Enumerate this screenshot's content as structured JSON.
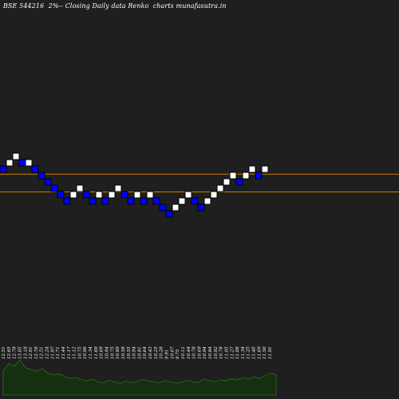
{
  "chart_data": {
    "type": "renko",
    "title": "BSE 544216  2%-- Closing Daily data Renko  charts munafasutra.in",
    "colors": {
      "background": "#1f1f1f",
      "up_brick": "#ffffff",
      "down_brick": "#0000ff",
      "brick_border": "#000000",
      "level_line": "#cc7a00",
      "volume_fill": "#14300f",
      "volume_line": "#2e6b22"
    },
    "ylim": [
      9.5,
      14.0
    ],
    "bricks": [
      {
        "dir": "down",
        "level": 13.51
      },
      {
        "dir": "up",
        "level": 13.78
      },
      {
        "dir": "up",
        "level": 14.05
      },
      {
        "dir": "down",
        "level": 13.78
      },
      {
        "dir": "up",
        "level": 13.78
      },
      {
        "dir": "down",
        "level": 13.51
      },
      {
        "dir": "down",
        "level": 13.24
      },
      {
        "dir": "down",
        "level": 12.97
      },
      {
        "dir": "down",
        "level": 12.7
      },
      {
        "dir": "down",
        "level": 12.43
      },
      {
        "dir": "down",
        "level": 12.16
      },
      {
        "dir": "up",
        "level": 12.43
      },
      {
        "dir": "up",
        "level": 12.7
      },
      {
        "dir": "down",
        "level": 12.43
      },
      {
        "dir": "down",
        "level": 12.16
      },
      {
        "dir": "up",
        "level": 12.43
      },
      {
        "dir": "down",
        "level": 12.16
      },
      {
        "dir": "up",
        "level": 12.43
      },
      {
        "dir": "up",
        "level": 12.7
      },
      {
        "dir": "down",
        "level": 12.43
      },
      {
        "dir": "down",
        "level": 12.16
      },
      {
        "dir": "up",
        "level": 12.43
      },
      {
        "dir": "down",
        "level": 12.16
      },
      {
        "dir": "up",
        "level": 12.43
      },
      {
        "dir": "down",
        "level": 12.16
      },
      {
        "dir": "down",
        "level": 11.89
      },
      {
        "dir": "down",
        "level": 11.62
      },
      {
        "dir": "up",
        "level": 11.89
      },
      {
        "dir": "up",
        "level": 12.16
      },
      {
        "dir": "up",
        "level": 12.43
      },
      {
        "dir": "down",
        "level": 12.16
      },
      {
        "dir": "down",
        "level": 11.89
      },
      {
        "dir": "up",
        "level": 12.16
      },
      {
        "dir": "up",
        "level": 12.43
      },
      {
        "dir": "up",
        "level": 12.7
      },
      {
        "dir": "up",
        "level": 12.97
      },
      {
        "dir": "up",
        "level": 13.24
      },
      {
        "dir": "down",
        "level": 12.97
      },
      {
        "dir": "up",
        "level": 13.24
      },
      {
        "dir": "up",
        "level": 13.51
      },
      {
        "dir": "down",
        "level": 13.24
      },
      {
        "dir": "up",
        "level": 13.51
      }
    ],
    "horizontal_lines": [
      13.3,
      12.55
    ],
    "price_labels": [
      "12.51",
      "12.65",
      "12.78",
      "13.05",
      "13.18",
      "12.91",
      "12.78",
      "12.51",
      "12.24",
      "11.97",
      "11.71",
      "11.44",
      "11.17",
      "11.12",
      "10.75",
      "10.96",
      "11.34",
      "11.69",
      "10.69",
      "10.94",
      "10.75",
      "10.89",
      "10.58",
      "10.55",
      "10.94",
      "10.81",
      "10.64",
      "10.43",
      "10.25",
      "10.28",
      "9.91",
      "10.07",
      "9.75",
      "10.11",
      "10.44",
      "10.78",
      "10.69",
      "10.94",
      "10.84",
      "10.92",
      "10.78",
      "11.05",
      "11.27",
      "11.08",
      "11.34",
      "11.25",
      "11.46",
      "11.69",
      "11.56",
      "11.91"
    ],
    "volume": [
      0.55,
      0.72,
      0.66,
      0.8,
      0.62,
      0.58,
      0.54,
      0.6,
      0.5,
      0.46,
      0.48,
      0.42,
      0.38,
      0.4,
      0.35,
      0.32,
      0.36,
      0.3,
      0.28,
      0.34,
      0.3,
      0.26,
      0.32,
      0.28,
      0.3,
      0.36,
      0.32,
      0.3,
      0.28,
      0.33,
      0.3,
      0.27,
      0.29,
      0.34,
      0.3,
      0.28,
      0.36,
      0.33,
      0.3,
      0.35,
      0.32,
      0.38,
      0.34,
      0.4,
      0.36,
      0.42,
      0.38,
      0.44,
      0.5,
      0.46
    ]
  }
}
